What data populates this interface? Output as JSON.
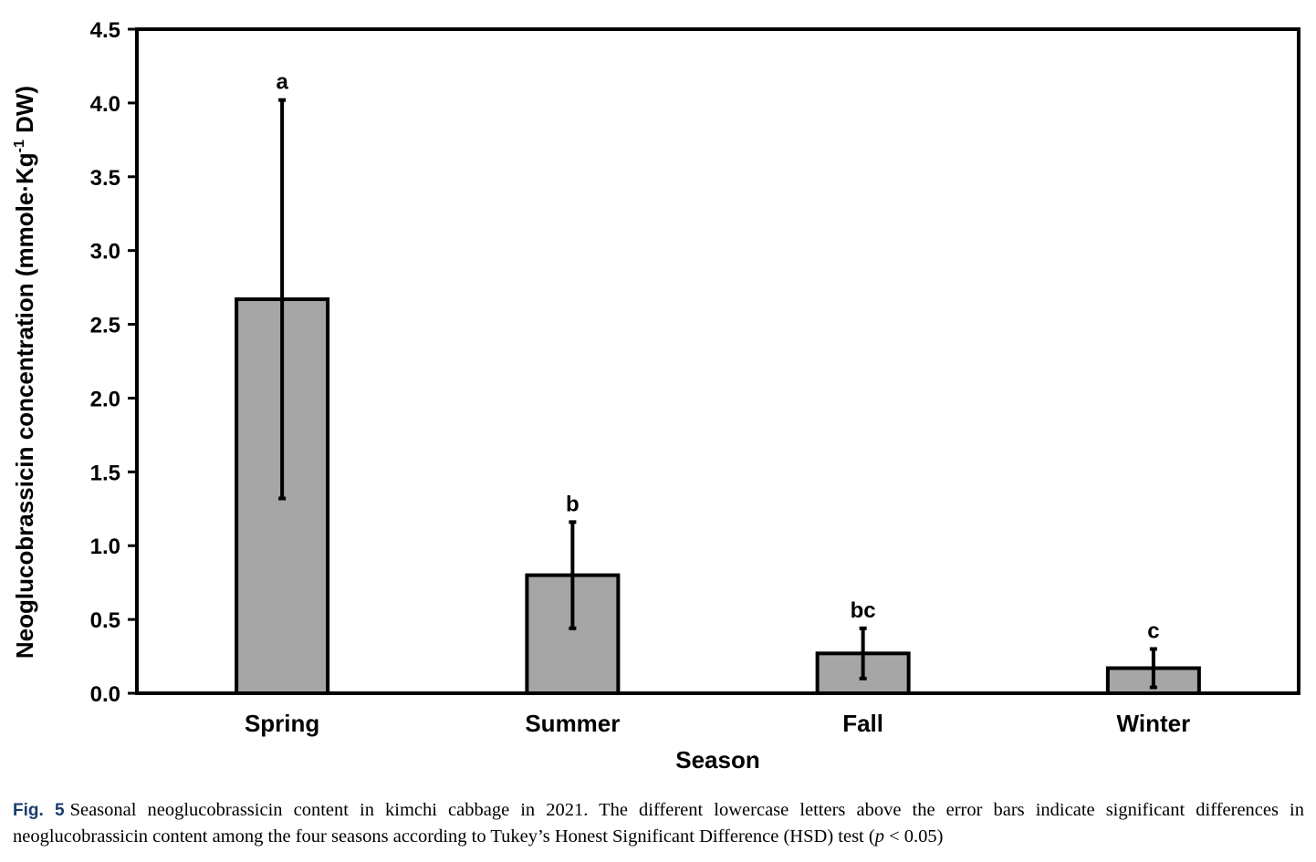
{
  "chart_data": {
    "type": "bar",
    "title": "",
    "xlabel": "Season",
    "ylabel_main": "Neoglucobrassicin concentration (mmole·Kg",
    "ylabel_sup": "-1",
    "ylabel_end": " DW)",
    "categories": [
      "Spring",
      "Summer",
      "Fall",
      "Winter"
    ],
    "values": [
      2.67,
      0.8,
      0.27,
      0.17
    ],
    "errors": [
      1.35,
      0.36,
      0.17,
      0.13
    ],
    "significance": [
      "a",
      "b",
      "bc",
      "c"
    ],
    "ylim": [
      0,
      4.5
    ],
    "yticks": [
      "0.0",
      "0.5",
      "1.0",
      "1.5",
      "2.0",
      "2.5",
      "3.0",
      "3.5",
      "4.0",
      "4.5"
    ],
    "bar_color": "#a6a6a6",
    "grid": false
  },
  "caption": {
    "fig_num": "Fig. 5",
    "text": "Seasonal neoglucobrassicin content in kimchi cabbage in 2021. The different lowercase letters above the error bars indicate significant differences in neoglucobrassicin content among the four seasons according to Tukey’s Honest Significant Difference (HSD) test (",
    "p_symbol": "p",
    "p_rest": " < 0.05)"
  }
}
